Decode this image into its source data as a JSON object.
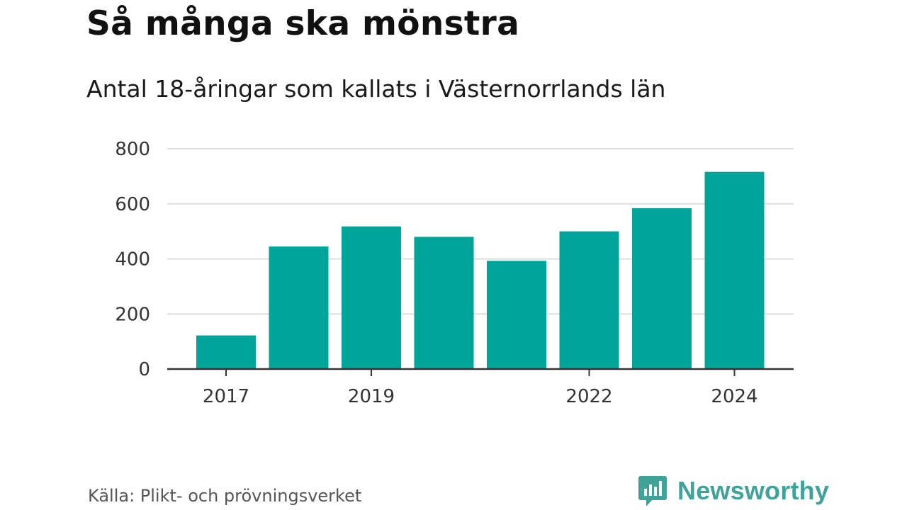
{
  "title": "Så många ska mönstra",
  "subtitle": "Antal 18-åringar som kallats i Västernorrlands län",
  "source": "Källa: Plikt- och prövningsverket",
  "brand": {
    "name": "Newsworthy",
    "icon": "newsworthy-logo-icon",
    "color": "#3fa39a"
  },
  "chart_data": {
    "type": "bar",
    "title": "Så många ska mönstra",
    "subtitle": "Antal 18-åringar som kallats i Västernorrlands län",
    "xlabel": "",
    "ylabel": "",
    "categories": [
      "2017",
      "2018",
      "2019",
      "2020",
      "2021",
      "2022",
      "2023",
      "2024"
    ],
    "values": [
      122,
      445,
      518,
      480,
      393,
      500,
      584,
      716
    ],
    "x_tick_labels": [
      "2017",
      "2019",
      "2022",
      "2024"
    ],
    "y_ticks": [
      0,
      200,
      400,
      600,
      800
    ],
    "ylim": [
      0,
      800
    ],
    "grid": true,
    "bar_color": "#00a499"
  }
}
